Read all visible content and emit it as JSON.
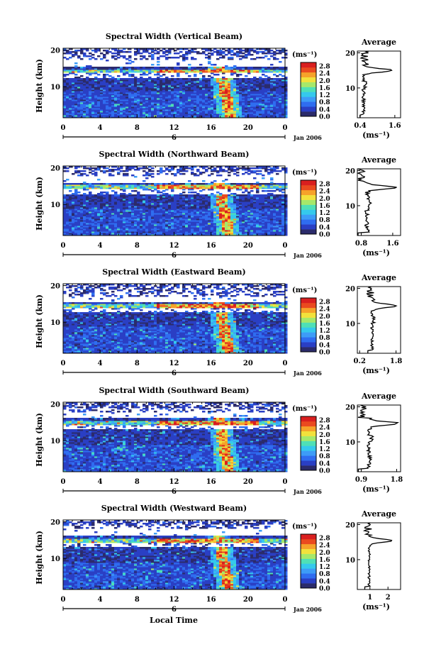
{
  "page": {
    "x_axis_title": "Local Time",
    "date_label": "Jan 2006",
    "day_label": "6",
    "height_axis_label": "Height (km)",
    "colorbar_unit": "(ms⁻¹)",
    "avg_title": "Average",
    "avg_unit": "(ms⁻¹)"
  },
  "colors": {
    "background": "#ffffff",
    "colormap": [
      "#2b2b6b",
      "#2a3fc4",
      "#2f6df0",
      "#3d9cf7",
      "#35c9ec",
      "#4fe0b6",
      "#a6e86a",
      "#f2e13c",
      "#f6a22a",
      "#ea4a1f",
      "#d91f1f"
    ]
  },
  "chart_data": [
    {
      "type": "heatmap",
      "title": "Spectral Width (Vertical Beam)",
      "x_ticks": [
        "0",
        "4",
        "8",
        "12",
        "16",
        "20",
        "0"
      ],
      "xlim": [
        0,
        24
      ],
      "y_ticks": [
        "10",
        "20"
      ],
      "ylim": [
        1.5,
        20.5
      ],
      "colorbar_ticks": [
        "0.0",
        "0.4",
        "0.8",
        "1.2",
        "1.6",
        "2.0",
        "2.4",
        "2.8"
      ],
      "colorbar_range": [
        0.0,
        3.0
      ],
      "tropopause_km": 14.5,
      "data_gap_km": [
        15.5,
        17.5
      ],
      "convective_event_hours": [
        16.0,
        17.5
      ],
      "average_profile": {
        "title": "Average",
        "xticks": [
          "0.4",
          "1.6"
        ],
        "xlim": [
          0.3,
          1.8
        ],
        "peak_height_km": 15.0,
        "peak_value": 1.55,
        "base_value": 0.52
      }
    },
    {
      "type": "heatmap",
      "title": "Spectral Width (Northward Beam)",
      "x_ticks": [
        "0",
        "4",
        "8",
        "12",
        "16",
        "20",
        "0"
      ],
      "xlim": [
        0,
        24
      ],
      "y_ticks": [
        "10",
        "20"
      ],
      "ylim": [
        1.5,
        20.5
      ],
      "colorbar_ticks": [
        "0.0",
        "0.4",
        "0.8",
        "1.2",
        "1.6",
        "2.0",
        "2.4",
        "2.8"
      ],
      "colorbar_range": [
        0.0,
        3.0
      ],
      "tropopause_km": 15.0,
      "data_gap_km": [
        16.2,
        17.8
      ],
      "convective_event_hours": [
        15.5,
        17.5
      ],
      "average_profile": {
        "title": "Average",
        "xticks": [
          "0.8",
          "1.6"
        ],
        "xlim": [
          0.7,
          1.8
        ],
        "peak_height_km": 15.2,
        "peak_value": 1.7,
        "base_value": 0.95
      }
    },
    {
      "type": "heatmap",
      "title": "Spectral Width (Eastward Beam)",
      "x_ticks": [
        "0",
        "4",
        "8",
        "12",
        "16",
        "20",
        "0"
      ],
      "xlim": [
        0,
        24
      ],
      "y_ticks": [
        "10",
        "20"
      ],
      "ylim": [
        1.5,
        20.5
      ],
      "colorbar_ticks": [
        "0.0",
        "0.4",
        "0.8",
        "1.2",
        "1.6",
        "2.0",
        "2.4",
        "2.8"
      ],
      "colorbar_range": [
        0.0,
        3.0
      ],
      "tropopause_km": 14.8,
      "data_gap_km": [
        15.8,
        17.2
      ],
      "convective_event_hours": [
        15.5,
        17.5
      ],
      "average_profile": {
        "title": "Average",
        "xticks": [
          "0.2",
          "1.8"
        ],
        "xlim": [
          0.1,
          2.0
        ],
        "peak_height_km": 15.0,
        "peak_value": 1.85,
        "base_value": 0.75
      }
    },
    {
      "type": "heatmap",
      "title": "Spectral Width (Southward Beam)",
      "x_ticks": [
        "0",
        "4",
        "8",
        "12",
        "16",
        "20",
        "0"
      ],
      "xlim": [
        0,
        24
      ],
      "y_ticks": [
        "10",
        "20"
      ],
      "ylim": [
        1.5,
        20.5
      ],
      "colorbar_ticks": [
        "0.0",
        "0.4",
        "0.8",
        "1.2",
        "1.6",
        "2.0",
        "2.4",
        "2.8"
      ],
      "colorbar_range": [
        0.0,
        3.0
      ],
      "tropopause_km": 15.2,
      "data_gap_km": [
        16.3,
        18.0
      ],
      "convective_event_hours": [
        15.5,
        17.5
      ],
      "average_profile": {
        "title": "Average",
        "xticks": [
          "0.9",
          "1.8"
        ],
        "xlim": [
          0.8,
          1.9
        ],
        "peak_height_km": 15.3,
        "peak_value": 1.85,
        "base_value": 1.1
      }
    },
    {
      "type": "heatmap",
      "title": "Spectral Width (Westward Beam)",
      "x_ticks": [
        "0",
        "4",
        "8",
        "12",
        "16",
        "20",
        "0"
      ],
      "xlim": [
        0,
        24
      ],
      "y_ticks": [
        "10",
        "20"
      ],
      "ylim": [
        1.5,
        20.5
      ],
      "colorbar_ticks": [
        "0.0",
        "0.4",
        "0.8",
        "1.2",
        "1.6",
        "2.0",
        "2.4",
        "2.8"
      ],
      "colorbar_range": [
        0.0,
        3.0
      ],
      "tropopause_km": 15.2,
      "data_gap_km": [
        16.3,
        18.2
      ],
      "convective_event_hours": [
        15.5,
        17.5
      ],
      "average_profile": {
        "title": "Average",
        "xticks": [
          "1",
          "2"
        ],
        "xlim": [
          0.3,
          2.7
        ],
        "peak_height_km": 15.4,
        "peak_value": 2.2,
        "base_value": 0.95
      }
    }
  ]
}
